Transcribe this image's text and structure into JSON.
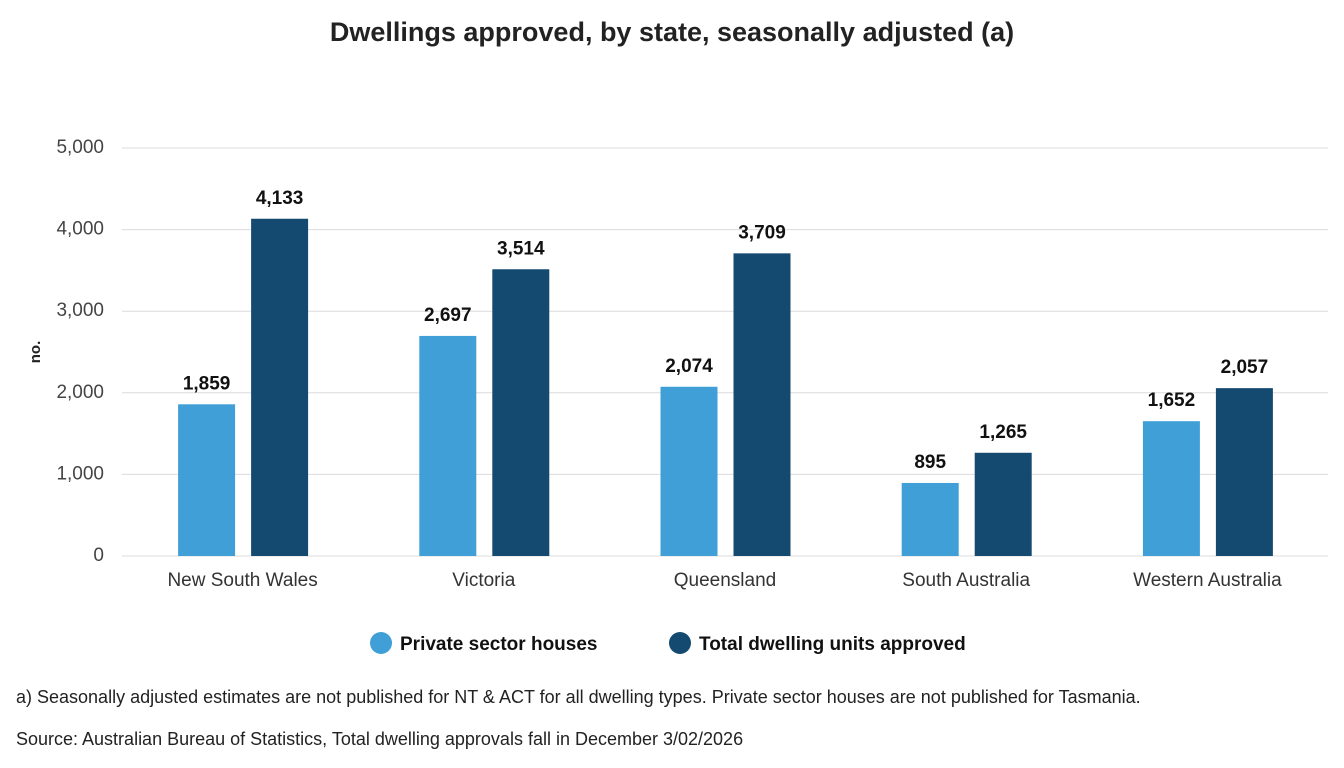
{
  "chart_data": {
    "type": "bar",
    "title": "Dwellings approved, by state, seasonally adjusted (a)",
    "y_label": "no.",
    "categories": [
      "New South Wales",
      "Victoria",
      "Queensland",
      "South Australia",
      "Western Australia"
    ],
    "series": [
      {
        "name": "Private sector houses",
        "color": "#3f9fd6",
        "values": [
          1859,
          2697,
          2074,
          895,
          1652
        ],
        "value_labels": [
          "1,859",
          "2,697",
          "2,074",
          "895",
          "1,652"
        ]
      },
      {
        "name": "Total dwelling units approved",
        "color": "#154a70",
        "values": [
          4133,
          3514,
          3709,
          1265,
          2057
        ],
        "value_labels": [
          "4,133",
          "3,514",
          "3,709",
          "1,265",
          "2,057"
        ]
      }
    ],
    "ylim": [
      0,
      5000
    ],
    "yticks": [
      0,
      {
        "value": 1000,
        "label": "1,000"
      },
      {
        "value": 2000,
        "label": "2,000"
      },
      {
        "value": 3000,
        "label": "3,000"
      },
      {
        "value": 4000,
        "label": "4,000"
      },
      {
        "value": 5000,
        "label": "5,000"
      }
    ],
    "grid": true,
    "legend": "bottom",
    "notes": [
      "a) Seasonally adjusted estimates are not published for NT & ACT for all dwelling types. Private sector houses are not published for Tasmania.",
      "Source: Australian Bureau of Statistics, Total dwelling approvals fall in December 3/02/2026"
    ]
  }
}
